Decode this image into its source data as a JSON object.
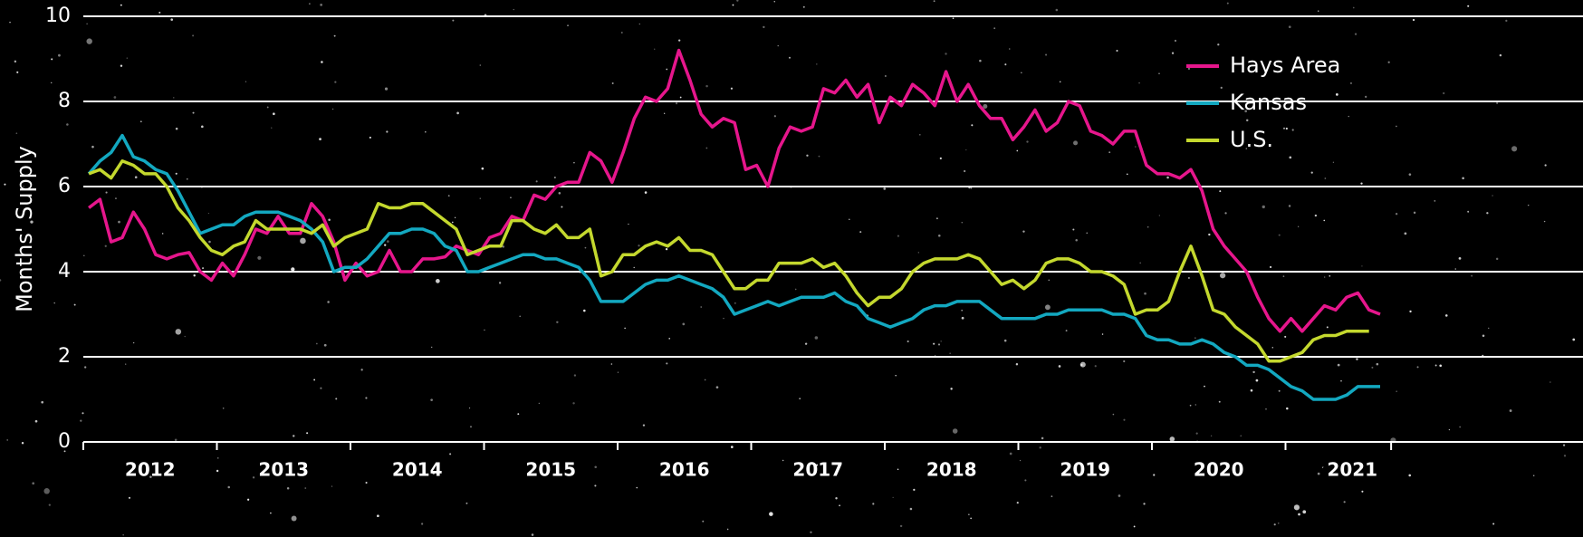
{
  "chart_data": {
    "type": "line",
    "y_label": "Months' Supply",
    "categories": [
      "2012",
      null,
      null,
      null,
      null,
      null,
      null,
      null,
      null,
      null,
      null,
      null,
      "2013",
      null,
      null,
      null,
      null,
      null,
      null,
      null,
      null,
      null,
      null,
      null,
      "2014",
      null,
      null,
      null,
      null,
      null,
      null,
      null,
      null,
      null,
      null,
      null,
      "2015",
      null,
      null,
      null,
      null,
      null,
      null,
      null,
      null,
      null,
      null,
      null,
      "2016",
      null,
      null,
      null,
      null,
      null,
      null,
      null,
      null,
      null,
      null,
      null,
      "2017",
      null,
      null,
      null,
      null,
      null,
      null,
      null,
      null,
      null,
      null,
      null,
      "2018",
      null,
      null,
      null,
      null,
      null,
      null,
      null,
      null,
      null,
      null,
      null,
      "2019",
      null,
      null,
      null,
      null,
      null,
      null,
      null,
      null,
      null,
      null,
      null,
      "2020",
      null,
      null,
      null,
      null,
      null,
      null,
      null,
      null,
      null,
      null,
      null,
      "2021",
      null,
      null,
      null,
      null,
      null,
      null,
      null,
      null
    ],
    "series": [
      {
        "name": "Hays Area",
        "color": "#e6168c",
        "values": [
          5.5,
          5.7,
          4.7,
          4.8,
          5.4,
          5.0,
          4.4,
          4.3,
          4.4,
          4.45,
          4.0,
          3.8,
          4.2,
          3.9,
          4.4,
          5.0,
          4.9,
          5.3,
          4.9,
          4.9,
          5.6,
          5.3,
          4.7,
          3.8,
          4.2,
          3.9,
          4.0,
          4.5,
          4.0,
          4.0,
          4.3,
          4.3,
          4.35,
          4.6,
          4.5,
          4.4,
          4.8,
          4.9,
          5.3,
          5.2,
          5.8,
          5.7,
          6.0,
          6.1,
          6.1,
          6.8,
          6.6,
          6.1,
          6.8,
          7.6,
          8.1,
          8.0,
          8.3,
          9.2,
          8.5,
          7.7,
          7.4,
          7.6,
          7.5,
          6.4,
          6.5,
          6.0,
          6.9,
          7.4,
          7.3,
          7.4,
          8.3,
          8.2,
          8.5,
          8.1,
          8.4,
          7.5,
          8.1,
          7.9,
          8.4,
          8.2,
          7.9,
          8.7,
          8.0,
          8.4,
          7.9,
          7.6,
          7.6,
          7.1,
          7.4,
          7.8,
          7.3,
          7.5,
          8.0,
          7.9,
          7.3,
          7.2,
          7.0,
          7.3,
          7.3,
          6.5,
          6.3,
          6.3,
          6.2,
          6.4,
          5.9,
          5.0,
          4.6,
          4.3,
          4.0,
          3.4,
          2.9,
          2.6,
          2.9,
          2.6,
          2.9,
          3.2,
          3.1,
          3.4,
          3.5,
          3.1,
          3.0
        ]
      },
      {
        "name": "Kansas",
        "color": "#13a8c0",
        "values": [
          6.3,
          6.6,
          6.8,
          7.2,
          6.7,
          6.6,
          6.4,
          6.3,
          5.9,
          5.4,
          4.9,
          5.0,
          5.1,
          5.1,
          5.3,
          5.4,
          5.4,
          5.4,
          5.3,
          5.2,
          5.0,
          4.7,
          4.0,
          4.1,
          4.1,
          4.3,
          4.6,
          4.9,
          4.9,
          5.0,
          5.0,
          4.9,
          4.6,
          4.5,
          4.0,
          4.0,
          4.1,
          4.2,
          4.3,
          4.4,
          4.4,
          4.3,
          4.3,
          4.2,
          4.1,
          3.8,
          3.3,
          3.3,
          3.3,
          3.5,
          3.7,
          3.8,
          3.8,
          3.9,
          3.8,
          3.7,
          3.6,
          3.4,
          3.0,
          3.1,
          3.2,
          3.3,
          3.2,
          3.3,
          3.4,
          3.4,
          3.4,
          3.5,
          3.3,
          3.2,
          2.9,
          2.8,
          2.7,
          2.8,
          2.9,
          3.1,
          3.2,
          3.2,
          3.3,
          3.3,
          3.3,
          3.1,
          2.9,
          2.9,
          2.9,
          2.9,
          3.0,
          3.0,
          3.1,
          3.1,
          3.1,
          3.1,
          3.0,
          3.0,
          2.9,
          2.5,
          2.4,
          2.4,
          2.3,
          2.3,
          2.4,
          2.3,
          2.1,
          2.0,
          1.8,
          1.8,
          1.7,
          1.5,
          1.3,
          1.2,
          1.0,
          1.0,
          1.0,
          1.1,
          1.3,
          1.3,
          1.3
        ]
      },
      {
        "name": "U.S.",
        "color": "#c4d82e",
        "values": [
          6.3,
          6.4,
          6.2,
          6.6,
          6.5,
          6.3,
          6.3,
          6.0,
          5.5,
          5.2,
          4.8,
          4.5,
          4.4,
          4.6,
          4.7,
          5.2,
          5.0,
          5.0,
          5.0,
          5.0,
          4.9,
          5.1,
          4.6,
          4.8,
          4.9,
          5.0,
          5.6,
          5.5,
          5.5,
          5.6,
          5.6,
          5.4,
          5.2,
          5.0,
          4.4,
          4.5,
          4.6,
          4.6,
          5.2,
          5.2,
          5.0,
          4.9,
          5.1,
          4.8,
          4.8,
          5.0,
          3.9,
          4.0,
          4.4,
          4.4,
          4.6,
          4.7,
          4.6,
          4.8,
          4.5,
          4.5,
          4.4,
          4.0,
          3.6,
          3.6,
          3.8,
          3.8,
          4.2,
          4.2,
          4.2,
          4.3,
          4.1,
          4.2,
          3.9,
          3.5,
          3.2,
          3.4,
          3.4,
          3.6,
          4.0,
          4.2,
          4.3,
          4.3,
          4.3,
          4.4,
          4.3,
          4.0,
          3.7,
          3.8,
          3.6,
          3.8,
          4.2,
          4.3,
          4.3,
          4.2,
          4.0,
          4.0,
          3.9,
          3.7,
          3.0,
          3.1,
          3.1,
          3.3,
          4.0,
          4.6,
          3.9,
          3.1,
          3.0,
          2.7,
          2.5,
          2.3,
          1.9,
          1.9,
          2.0,
          2.1,
          2.4,
          2.5,
          2.5,
          2.6,
          2.6,
          2.6,
          null
        ]
      }
    ],
    "ylim": [
      0,
      10
    ],
    "yticks": [
      0,
      2,
      4,
      6,
      8,
      10
    ],
    "grid": true,
    "legend": "top-right"
  }
}
